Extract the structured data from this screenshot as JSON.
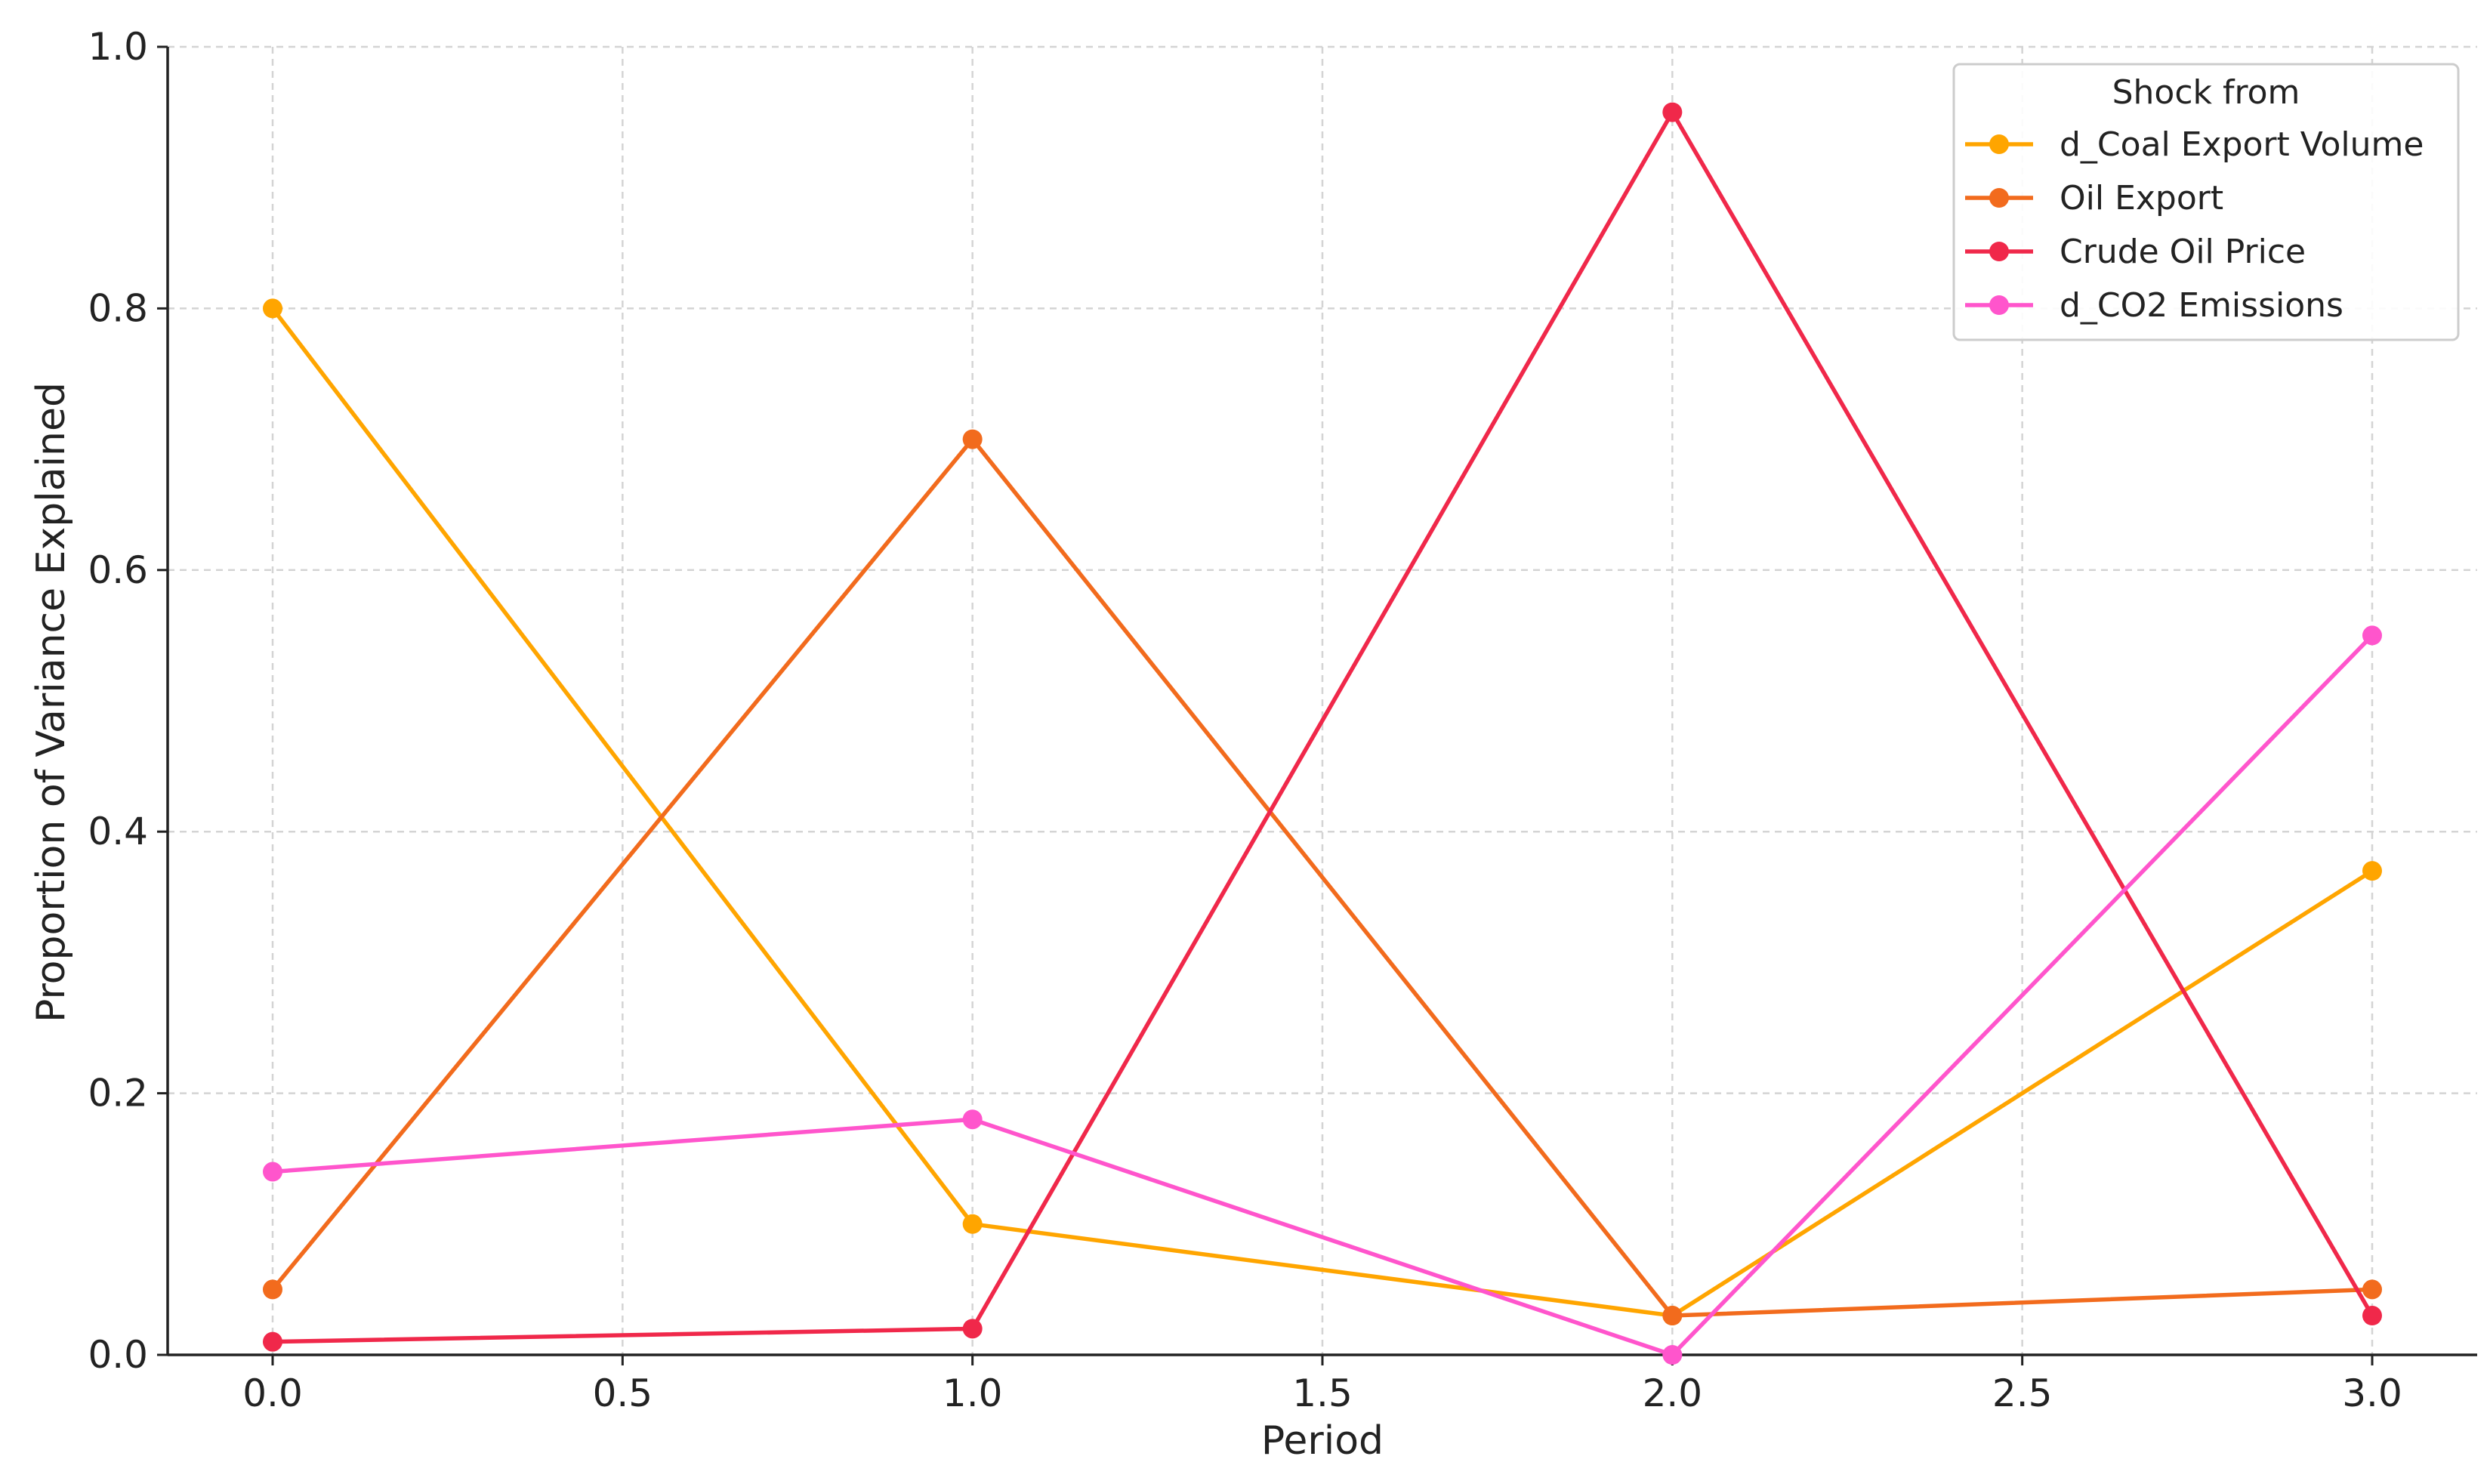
{
  "chart_data": {
    "type": "line",
    "xlabel": "Period",
    "ylabel": "Proportion of Variance Explained",
    "xlim": [
      -0.15,
      3.15
    ],
    "ylim": [
      0.0,
      1.0
    ],
    "x_ticks": [
      0.0,
      0.5,
      1.0,
      1.5,
      2.0,
      2.5,
      3.0
    ],
    "x_tick_labels": [
      "0.0",
      "0.5",
      "1.0",
      "1.5",
      "2.0",
      "2.5",
      "3.0"
    ],
    "y_ticks": [
      0.0,
      0.2,
      0.4,
      0.6,
      0.8,
      1.0
    ],
    "y_tick_labels": [
      "0.0",
      "0.2",
      "0.4",
      "0.6",
      "0.8",
      "1.0"
    ],
    "grid": true,
    "legend": {
      "title": "Shock from",
      "placement": "top-right"
    },
    "x": [
      0,
      1,
      2,
      3
    ],
    "series": [
      {
        "name": "d_Coal Export Volume",
        "color": "#FFA500",
        "values": [
          0.8,
          0.1,
          0.03,
          0.37
        ]
      },
      {
        "name": "Oil Export",
        "color": "#F26B1D",
        "values": [
          0.05,
          0.7,
          0.03,
          0.05
        ]
      },
      {
        "name": "Crude Oil Price",
        "color": "#F0284A",
        "values": [
          0.01,
          0.02,
          0.95,
          0.03
        ]
      },
      {
        "name": "d_CO2 Emissions",
        "color": "#FF55CC",
        "values": [
          0.14,
          0.18,
          0.0,
          0.55
        ]
      }
    ]
  }
}
